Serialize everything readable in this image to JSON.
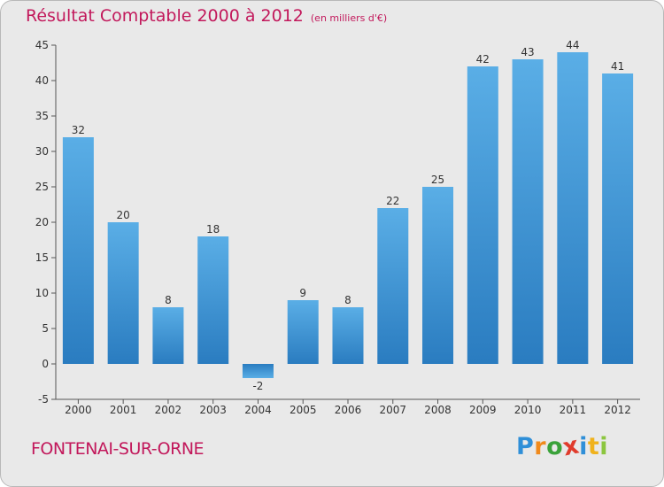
{
  "chart_data": {
    "type": "bar",
    "title": "Résultat Comptable 2000 à 2012",
    "subtitle": "(en milliers d'€)",
    "categories": [
      "2000",
      "2001",
      "2002",
      "2003",
      "2004",
      "2005",
      "2006",
      "2007",
      "2008",
      "2009",
      "2010",
      "2011",
      "2012"
    ],
    "values": [
      32,
      20,
      8,
      18,
      -2,
      9,
      8,
      22,
      25,
      42,
      43,
      44,
      41
    ],
    "ylim": [
      -5,
      45
    ],
    "yticks": [
      -5,
      0,
      5,
      10,
      15,
      20,
      25,
      30,
      35,
      40,
      45
    ],
    "xlabel": "",
    "ylabel": "",
    "grid": false,
    "bar_color_light": "#5aaee6",
    "bar_color_dark": "#2a7cc0"
  },
  "footer": {
    "place": "FONTENAI-SUR-ORNE",
    "logo_letters": [
      {
        "ch": "P",
        "color": "#2f8fd8"
      },
      {
        "ch": "r",
        "color": "#f08a1c"
      },
      {
        "ch": "o",
        "color": "#3aa23a"
      },
      {
        "ch": "x",
        "color": "#e03b2c"
      },
      {
        "ch": "i",
        "color": "#2f8fd8"
      },
      {
        "ch": "t",
        "color": "#f0b21c"
      },
      {
        "ch": "i",
        "color": "#8cc63f"
      }
    ]
  },
  "colors": {
    "title": "#c2185b",
    "axis": "#555555",
    "label": "#333333"
  }
}
